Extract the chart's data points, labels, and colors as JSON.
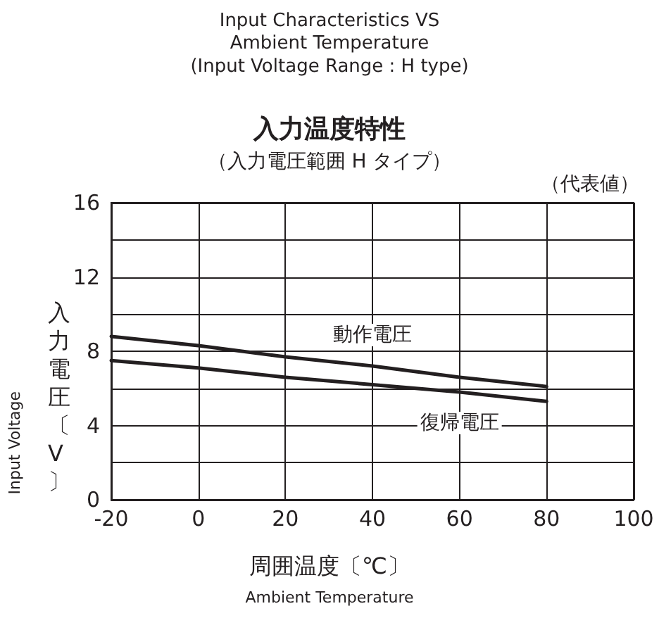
{
  "chart_data": {
    "type": "line",
    "title": "Input Characteristics VS\nAmbient Temperature",
    "subtitle": "(Input Voltage Range : H type)",
    "annotations": [
      "入力温度特性",
      "（入力電圧範囲 H タイプ）",
      "（代表値）",
      "Input Voltage",
      "Ambient Temperature"
    ],
    "xlabel": "周囲温度〔℃〕",
    "ylabel": "入力電圧〔V〕",
    "x": [
      -20,
      0,
      20,
      40,
      60,
      80
    ],
    "series": [
      {
        "name": "動作電圧",
        "color": "#231f20",
        "values": [
          8.8,
          8.3,
          7.7,
          7.2,
          6.6,
          6.1
        ]
      },
      {
        "name": "復帰電圧",
        "color": "#231f20",
        "values": [
          7.5,
          7.1,
          6.6,
          6.2,
          5.8,
          5.3
        ]
      }
    ],
    "xlim": [
      -20,
      100
    ],
    "xticks": [
      -20,
      0,
      20,
      40,
      60,
      80,
      100
    ],
    "ylim": [
      0,
      16
    ],
    "yticks": [
      0,
      {
        "value": 2,
        "label": null
      },
      4,
      {
        "value": 6,
        "label": null
      },
      8,
      {
        "value": 10,
        "label": null
      },
      12,
      {
        "value": 14,
        "label": null
      },
      16
    ],
    "grid": true,
    "marker": "none",
    "line_style": "solid"
  }
}
